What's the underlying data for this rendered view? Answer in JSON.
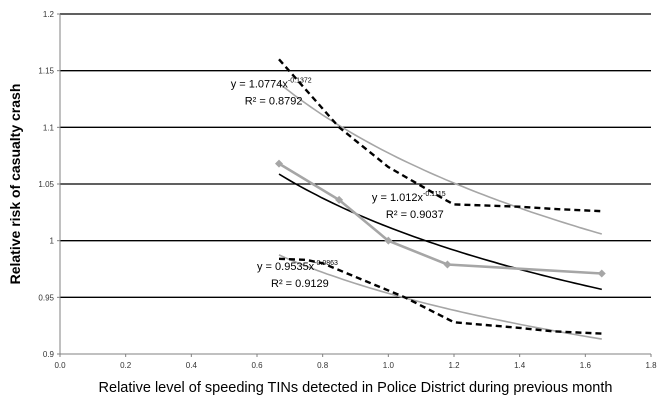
{
  "chart_data": {
    "type": "line",
    "title": "",
    "xlabel": "Relative level of speeding TINs detected in Police District during previous month",
    "ylabel": "Relative risk of casualty crash",
    "xlim": [
      0.0,
      1.8
    ],
    "ylim": [
      0.9,
      1.2
    ],
    "xticks": [
      0.0,
      0.2,
      0.4,
      0.6,
      0.8,
      1.0,
      1.2,
      1.4,
      1.6,
      1.8
    ],
    "yticks": [
      0.9,
      0.95,
      1.0,
      1.05,
      1.1,
      1.15,
      1.2
    ],
    "xtick_labels": [
      "0.0",
      "0.2",
      "0.4",
      "0.6",
      "0.8",
      "1.0",
      "1.2",
      "1.4",
      "1.6",
      "1.8"
    ],
    "ytick_labels": [
      "0.9",
      "0.95",
      "1",
      "1.05",
      "1.1",
      "1.15",
      "1.2"
    ],
    "grid": "horizontal",
    "legend": "none",
    "series": [
      {
        "style": "solid-gray-markers",
        "color": "#a6a6a6",
        "x": [
          0.667,
          0.85,
          1.0,
          1.18,
          1.65
        ],
        "y": [
          1.068,
          1.036,
          1.0,
          0.979,
          0.971
        ]
      },
      {
        "style": "dashed-black",
        "color": "#000000",
        "x": [
          0.667,
          0.85,
          1.0,
          1.18,
          1.2,
          1.4,
          1.5,
          1.65
        ],
        "y": [
          1.16,
          1.1,
          1.065,
          1.035,
          1.032,
          1.03,
          1.028,
          1.026
        ]
      },
      {
        "style": "dashed-black",
        "color": "#000000",
        "x": [
          0.667,
          0.75,
          0.8,
          0.9,
          1.05,
          1.2,
          1.4,
          1.5,
          1.65
        ],
        "y": [
          0.984,
          0.983,
          0.98,
          0.968,
          0.95,
          0.928,
          0.923,
          0.92,
          0.918
        ]
      }
    ],
    "trendlines": [
      {
        "a": 1.0774,
        "b": -0.1372,
        "x_range": [
          0.667,
          1.65
        ],
        "color": "#a6a6a6",
        "width": 1.6
      },
      {
        "a": 1.012,
        "b": -0.1115,
        "x_range": [
          0.667,
          1.65
        ],
        "color": "#000000",
        "width": 1.6
      },
      {
        "a": 0.9535,
        "b": -0.0863,
        "x_range": [
          0.667,
          1.65
        ],
        "color": "#a6a6a6",
        "width": 1.6
      }
    ],
    "annotations": [
      {
        "eq_base": "y = 1.0774x",
        "eq_exp": "-0.1372",
        "r2": "R² = 0.8792",
        "x": 0.52,
        "y": 1.135
      },
      {
        "eq_base": "y = 1.012x",
        "eq_exp": "-0.1115",
        "r2": "R² = 0.9037",
        "x": 0.95,
        "y": 1.035
      },
      {
        "eq_base": "y = 0.9535x",
        "eq_exp": "-0.0863",
        "r2": "R² = 0.9129",
        "x": 0.6,
        "y": 0.974
      }
    ]
  }
}
